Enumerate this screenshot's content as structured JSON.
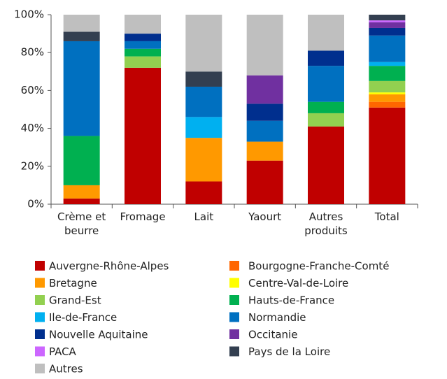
{
  "chart_data": {
    "type": "stacked_bar",
    "categories": [
      "Crème et beurre",
      "Fromage",
      "Lait",
      "Yaourt",
      "Autres produits",
      "Total"
    ],
    "ylim": [
      0,
      100
    ],
    "yticks": [
      {
        "value": 0,
        "label": "0%"
      },
      {
        "value": 20,
        "label": "20%"
      },
      {
        "value": 40,
        "label": "40%"
      },
      {
        "value": 60,
        "label": "60%"
      },
      {
        "value": 80,
        "label": "80%"
      },
      {
        "value": 100,
        "label": "100%"
      }
    ],
    "grid": false,
    "legend": "bottom",
    "series": [
      {
        "name": "Auvergne-Rhône-Alpes",
        "color": "#c00000",
        "values": [
          3,
          72,
          12,
          23,
          41,
          51
        ]
      },
      {
        "name": "Bourgogne-Franche-Comté",
        "color": "#ff6600",
        "values": [
          0,
          0,
          0,
          0,
          0,
          3
        ]
      },
      {
        "name": "Bretagne",
        "color": "#ff9900",
        "values": [
          7,
          0,
          23,
          10,
          0,
          4
        ]
      },
      {
        "name": "Centre-Val-de-Loire",
        "color": "#ffff00",
        "values": [
          0,
          0,
          0,
          0,
          0,
          1
        ]
      },
      {
        "name": "Grand-Est",
        "color": "#92d050",
        "values": [
          0,
          6,
          0,
          0,
          7,
          6
        ]
      },
      {
        "name": "Hauts-de-France",
        "color": "#00b050",
        "values": [
          26,
          4,
          0,
          0,
          6,
          8
        ]
      },
      {
        "name": "Ile-de-France",
        "color": "#00b0f0",
        "values": [
          0,
          0,
          11,
          0,
          0,
          2
        ]
      },
      {
        "name": "Normandie",
        "color": "#0070c0",
        "values": [
          50,
          4,
          16,
          11,
          19,
          14
        ]
      },
      {
        "name": "Nouvelle Aquitaine",
        "color": "#002f8e",
        "values": [
          0,
          4,
          0,
          9,
          8,
          4
        ]
      },
      {
        "name": "Occitanie",
        "color": "#7030a0",
        "values": [
          0,
          0,
          0,
          15,
          0,
          3
        ]
      },
      {
        "name": "PACA",
        "color": "#cc66ff",
        "values": [
          0,
          0,
          0,
          0,
          0,
          1
        ]
      },
      {
        "name": "Pays de la Loire",
        "color": "#333f50",
        "values": [
          5,
          0,
          8,
          0,
          0,
          3
        ]
      },
      {
        "name": "Autres",
        "color": "#bfbfbf",
        "values": [
          9,
          10,
          30,
          32,
          19,
          0
        ]
      }
    ]
  }
}
